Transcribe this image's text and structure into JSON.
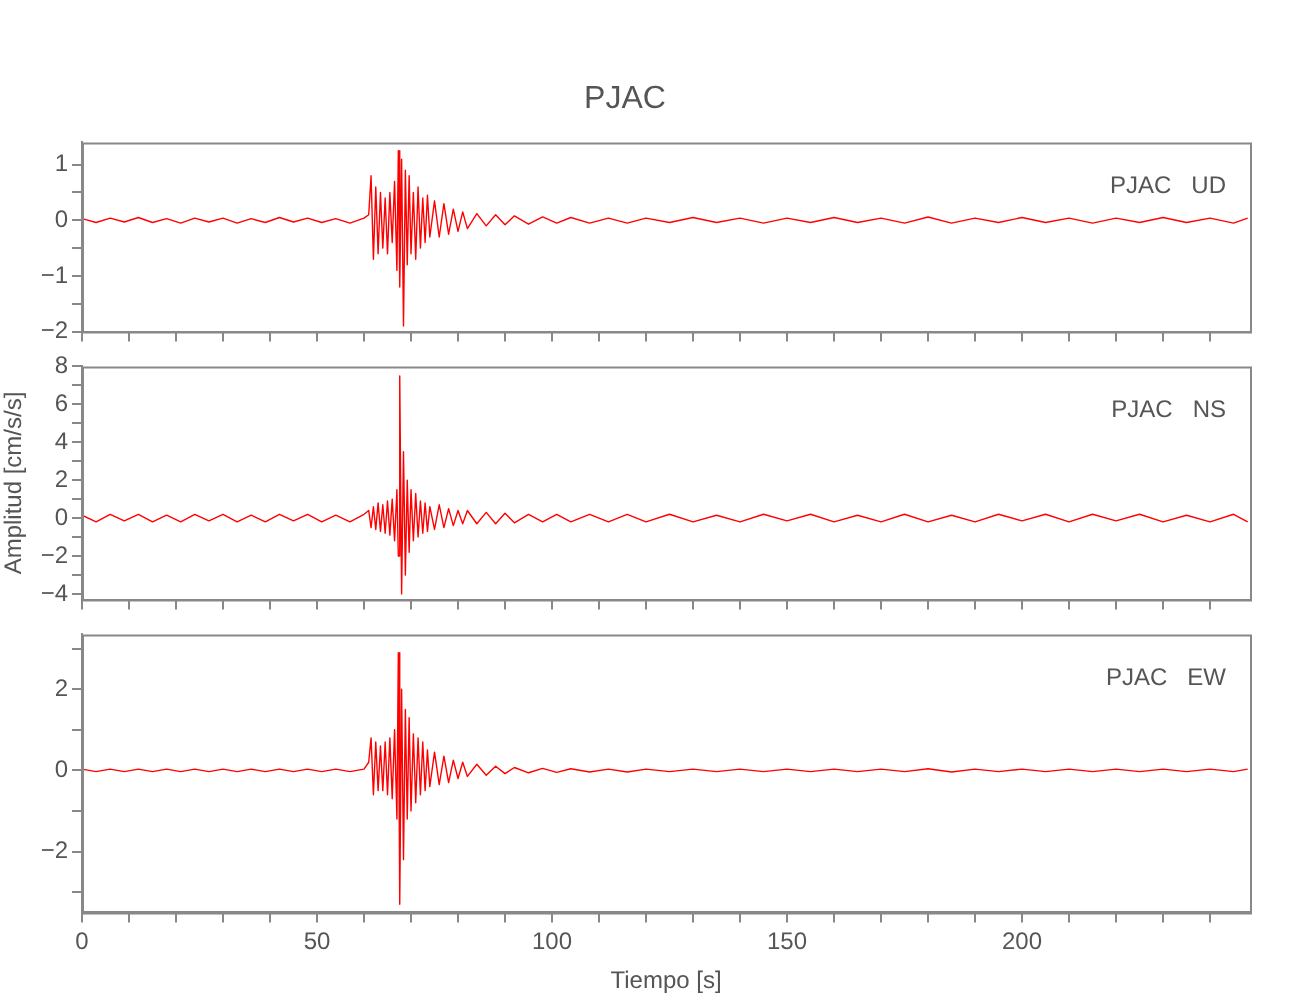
{
  "chart_data": [
    {
      "type": "line",
      "title": "PJAC",
      "annotations": [
        "PJAC   UD"
      ],
      "tick_labels": "y",
      "marker": "none",
      "x": [
        0,
        3,
        6,
        9,
        12,
        15,
        18,
        21,
        24,
        27,
        30,
        33,
        36,
        39,
        42,
        45,
        48,
        51,
        54,
        57,
        60,
        61,
        61.5,
        62,
        62.5,
        63,
        63.5,
        64,
        64.5,
        65,
        65.5,
        66,
        66.5,
        67,
        67.3,
        67.6,
        68,
        68.4,
        68.8,
        69.2,
        69.6,
        70,
        70.5,
        71,
        71.5,
        72,
        72.5,
        73,
        73.5,
        74,
        75,
        76,
        77,
        78,
        79,
        80,
        81,
        82,
        84,
        86,
        88,
        90,
        92,
        95,
        98,
        101,
        104,
        108,
        112,
        116,
        120,
        125,
        130,
        135,
        140,
        145,
        150,
        155,
        160,
        165,
        170,
        175,
        180,
        185,
        190,
        195,
        200,
        205,
        210,
        215,
        220,
        225,
        230,
        235,
        240,
        245,
        248
      ],
      "series": [
        {
          "color": "#ff0000",
          "values": [
            0.03,
            -0.04,
            0.04,
            -0.03,
            0.05,
            -0.04,
            0.03,
            -0.05,
            0.04,
            -0.03,
            0.04,
            -0.05,
            0.03,
            -0.04,
            0.05,
            -0.03,
            0.04,
            -0.04,
            0.03,
            -0.05,
            0.04,
            0.1,
            0.8,
            -0.7,
            0.6,
            -0.6,
            0.5,
            -0.5,
            0.4,
            -0.6,
            0.5,
            -0.4,
            0.7,
            -0.9,
            1.25,
            -1.2,
            1.1,
            -1.9,
            0.9,
            -0.8,
            0.8,
            -0.6,
            0.5,
            -0.7,
            0.6,
            -0.5,
            0.4,
            -0.4,
            0.45,
            -0.3,
            0.35,
            -0.3,
            0.3,
            -0.25,
            0.2,
            -0.2,
            0.15,
            -0.15,
            0.12,
            -0.1,
            0.1,
            -0.08,
            0.08,
            -0.07,
            0.06,
            -0.05,
            0.05,
            -0.05,
            0.04,
            -0.05,
            0.04,
            -0.04,
            0.05,
            -0.04,
            0.04,
            -0.05,
            0.04,
            -0.04,
            0.05,
            -0.04,
            0.04,
            -0.05,
            0.06,
            -0.05,
            0.04,
            -0.04,
            0.05,
            -0.04,
            0.04,
            -0.05,
            0.04,
            -0.04,
            0.05,
            -0.04,
            0.04,
            -0.05,
            0.04
          ]
        }
      ],
      "xlim": [
        0,
        248.5
      ],
      "xticks": [
        0,
        {
          "value": 10,
          "label": null
        },
        {
          "value": 20,
          "label": null
        },
        {
          "value": 30,
          "label": null
        },
        {
          "value": 40,
          "label": null
        },
        50,
        {
          "value": 60,
          "label": null
        },
        {
          "value": 70,
          "label": null
        },
        {
          "value": 80,
          "label": null
        },
        {
          "value": 90,
          "label": null
        },
        100,
        {
          "value": 110,
          "label": null
        },
        {
          "value": 120,
          "label": null
        },
        {
          "value": 130,
          "label": null
        },
        {
          "value": 140,
          "label": null
        },
        150,
        {
          "value": 160,
          "label": null
        },
        {
          "value": 170,
          "label": null
        },
        {
          "value": 180,
          "label": null
        },
        {
          "value": 190,
          "label": null
        },
        200,
        {
          "value": 210,
          "label": null
        },
        {
          "value": 220,
          "label": null
        },
        {
          "value": 230,
          "label": null
        },
        {
          "value": 240,
          "label": null
        }
      ],
      "ylim": [
        -2,
        1.4
      ],
      "yticks": [
        -2,
        {
          "value": -1.5,
          "label": null
        },
        -1,
        {
          "value": -0.5,
          "label": null
        },
        0,
        {
          "value": 0.5,
          "label": null
        },
        1
      ]
    },
    {
      "type": "line",
      "ylabel": "Amplitud [cm/s/s]",
      "annotations": [
        "PJAC   NS"
      ],
      "tick_labels": "y",
      "marker": "none",
      "x": [
        0,
        3,
        6,
        9,
        12,
        15,
        18,
        21,
        24,
        27,
        30,
        33,
        36,
        39,
        42,
        45,
        48,
        51,
        54,
        57,
        60,
        61,
        61.5,
        62,
        62.5,
        63,
        63.5,
        64,
        64.5,
        65,
        65.5,
        66,
        66.5,
        67,
        67.3,
        67.6,
        68,
        68.4,
        68.8,
        69.2,
        69.6,
        70,
        70.5,
        71,
        71.5,
        72,
        72.5,
        73,
        73.5,
        74,
        75,
        76,
        77,
        78,
        79,
        80,
        81,
        82,
        84,
        86,
        88,
        90,
        92,
        95,
        98,
        101,
        104,
        108,
        112,
        116,
        120,
        125,
        130,
        135,
        140,
        145,
        150,
        155,
        160,
        165,
        170,
        175,
        180,
        185,
        190,
        195,
        200,
        205,
        210,
        215,
        220,
        225,
        230,
        235,
        240,
        245,
        248
      ],
      "series": [
        {
          "color": "#ff0000",
          "values": [
            0.15,
            -0.2,
            0.2,
            -0.15,
            0.2,
            -0.2,
            0.15,
            -0.2,
            0.2,
            -0.15,
            0.2,
            -0.2,
            0.15,
            -0.2,
            0.2,
            -0.15,
            0.2,
            -0.2,
            0.15,
            -0.2,
            0.2,
            0.4,
            -0.5,
            0.6,
            -0.6,
            0.8,
            -0.7,
            0.7,
            -0.8,
            0.9,
            -0.9,
            1.0,
            -1.2,
            1.5,
            -2.0,
            7.5,
            -4.0,
            3.5,
            -3.0,
            2.0,
            -1.8,
            1.5,
            -1.2,
            1.3,
            -1.0,
            0.9,
            -0.8,
            0.8,
            -0.7,
            0.6,
            -0.6,
            0.7,
            -0.5,
            0.5,
            -0.4,
            0.4,
            -0.3,
            0.4,
            -0.3,
            0.3,
            -0.3,
            0.25,
            -0.25,
            0.2,
            -0.2,
            0.2,
            -0.2,
            0.2,
            -0.2,
            0.2,
            -0.2,
            0.2,
            -0.2,
            0.15,
            -0.2,
            0.2,
            -0.15,
            0.2,
            -0.2,
            0.15,
            -0.2,
            0.2,
            -0.2,
            0.15,
            -0.2,
            0.2,
            -0.15,
            0.2,
            -0.2,
            0.2,
            -0.15,
            0.2,
            -0.2,
            0.15,
            -0.2,
            0.2,
            -0.2
          ]
        }
      ],
      "xlim": [
        0,
        248.5
      ],
      "xticks": [
        0,
        {
          "value": 10,
          "label": null
        },
        {
          "value": 20,
          "label": null
        },
        {
          "value": 30,
          "label": null
        },
        {
          "value": 40,
          "label": null
        },
        50,
        {
          "value": 60,
          "label": null
        },
        {
          "value": 70,
          "label": null
        },
        {
          "value": 80,
          "label": null
        },
        {
          "value": 90,
          "label": null
        },
        100,
        {
          "value": 110,
          "label": null
        },
        {
          "value": 120,
          "label": null
        },
        {
          "value": 130,
          "label": null
        },
        {
          "value": 140,
          "label": null
        },
        150,
        {
          "value": 160,
          "label": null
        },
        {
          "value": 170,
          "label": null
        },
        {
          "value": 180,
          "label": null
        },
        {
          "value": 190,
          "label": null
        },
        200,
        {
          "value": 210,
          "label": null
        },
        {
          "value": 220,
          "label": null
        },
        {
          "value": 230,
          "label": null
        },
        {
          "value": 240,
          "label": null
        }
      ],
      "ylim": [
        -4.3,
        8
      ],
      "yticks": [
        -4,
        {
          "value": -3,
          "label": null
        },
        -2,
        {
          "value": -1,
          "label": null
        },
        0,
        {
          "value": 1,
          "label": null
        },
        2,
        {
          "value": 3,
          "label": null
        },
        4,
        {
          "value": 5,
          "label": null
        },
        6,
        {
          "value": 7,
          "label": null
        },
        8
      ]
    },
    {
      "type": "line",
      "xlabel": "Tiempo [s]",
      "annotations": [
        "PJAC   EW"
      ],
      "marker": "none",
      "x": [
        0,
        3,
        6,
        9,
        12,
        15,
        18,
        21,
        24,
        27,
        30,
        33,
        36,
        39,
        42,
        45,
        48,
        51,
        54,
        57,
        60,
        61,
        61.5,
        62,
        62.5,
        63,
        63.5,
        64,
        64.5,
        65,
        65.5,
        66,
        66.5,
        67,
        67.3,
        67.6,
        68,
        68.4,
        68.8,
        69.2,
        69.6,
        70,
        70.5,
        71,
        71.5,
        72,
        72.5,
        73,
        73.5,
        74,
        75,
        76,
        77,
        78,
        79,
        80,
        81,
        82,
        84,
        86,
        88,
        90,
        92,
        95,
        98,
        101,
        104,
        108,
        112,
        116,
        120,
        125,
        130,
        135,
        140,
        145,
        150,
        155,
        160,
        165,
        170,
        175,
        180,
        185,
        190,
        195,
        200,
        205,
        210,
        215,
        220,
        225,
        230,
        235,
        240,
        245,
        248
      ],
      "series": [
        {
          "color": "#ff0000",
          "values": [
            0.03,
            -0.03,
            0.03,
            -0.03,
            0.03,
            -0.03,
            0.03,
            -0.03,
            0.03,
            -0.03,
            0.03,
            -0.03,
            0.03,
            -0.03,
            0.03,
            -0.03,
            0.03,
            -0.03,
            0.03,
            -0.03,
            0.03,
            0.2,
            0.8,
            -0.6,
            0.7,
            -0.5,
            0.6,
            -0.5,
            0.7,
            -0.6,
            0.8,
            -0.7,
            1.0,
            -1.2,
            2.9,
            -3.3,
            2.0,
            -2.2,
            1.5,
            -1.2,
            1.3,
            -1.0,
            0.9,
            -0.8,
            0.8,
            -0.6,
            0.7,
            -0.5,
            0.5,
            -0.4,
            0.45,
            -0.35,
            0.35,
            -0.3,
            0.25,
            -0.2,
            0.2,
            -0.15,
            0.15,
            -0.12,
            0.1,
            -0.08,
            0.07,
            -0.06,
            0.05,
            -0.05,
            0.04,
            -0.04,
            0.03,
            -0.04,
            0.03,
            -0.03,
            0.03,
            -0.03,
            0.03,
            -0.03,
            0.03,
            -0.03,
            0.03,
            -0.03,
            0.03,
            -0.03,
            0.04,
            -0.04,
            0.03,
            -0.03,
            0.03,
            -0.03,
            0.03,
            -0.03,
            0.03,
            -0.03,
            0.03,
            -0.03,
            0.03,
            -0.03,
            0.03
          ]
        }
      ],
      "xlim": [
        0,
        248.5
      ],
      "xticks": [
        0,
        {
          "value": 10,
          "label": null
        },
        {
          "value": 20,
          "label": null
        },
        {
          "value": 30,
          "label": null
        },
        {
          "value": 40,
          "label": null
        },
        50,
        {
          "value": 60,
          "label": null
        },
        {
          "value": 70,
          "label": null
        },
        {
          "value": 80,
          "label": null
        },
        {
          "value": 90,
          "label": null
        },
        100,
        {
          "value": 110,
          "label": null
        },
        {
          "value": 120,
          "label": null
        },
        {
          "value": 130,
          "label": null
        },
        {
          "value": 140,
          "label": null
        },
        150,
        {
          "value": 160,
          "label": null
        },
        {
          "value": 170,
          "label": null
        },
        {
          "value": 180,
          "label": null
        },
        {
          "value": 190,
          "label": null
        },
        200,
        {
          "value": 210,
          "label": null
        },
        {
          "value": 220,
          "label": null
        },
        {
          "value": 230,
          "label": null
        },
        {
          "value": 240,
          "label": null
        }
      ],
      "ylim": [
        -3.5,
        3.35
      ],
      "yticks": [
        {
          "value": -3,
          "label": null
        },
        -2,
        {
          "value": -1,
          "label": null
        },
        0,
        {
          "value": 1,
          "label": null
        },
        2,
        {
          "value": 3,
          "label": null
        }
      ]
    }
  ]
}
